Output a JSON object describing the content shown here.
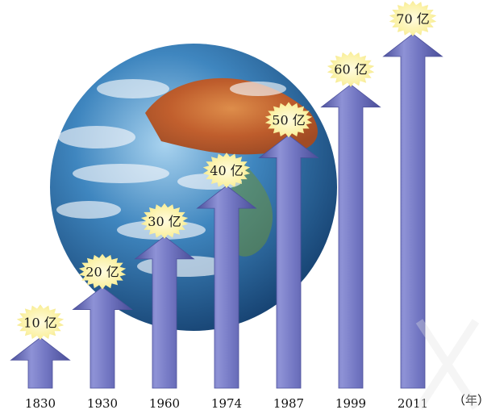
{
  "chart_data": {
    "type": "bar",
    "categories": [
      "1830",
      "1930",
      "1960",
      "1974",
      "1987",
      "1999",
      "2011"
    ],
    "values": [
      10,
      20,
      30,
      40,
      50,
      60,
      70
    ],
    "data_labels": [
      "10 亿",
      "20 亿",
      "30 亿",
      "40 亿",
      "50 亿",
      "60 亿",
      "70 亿"
    ],
    "x_unit": "（年）",
    "title": "",
    "xlabel": "",
    "ylabel": "",
    "ylim": [
      0,
      70
    ],
    "grid": false,
    "legend": "none",
    "colors": {
      "arrow": "#7276c2",
      "arrow_dark": "#4d519c",
      "arrow_light": "#9a9ddb",
      "badge": "#fbf2a8",
      "globe_ocean": "#2f6fa6",
      "globe_land": "#c9652a"
    }
  }
}
